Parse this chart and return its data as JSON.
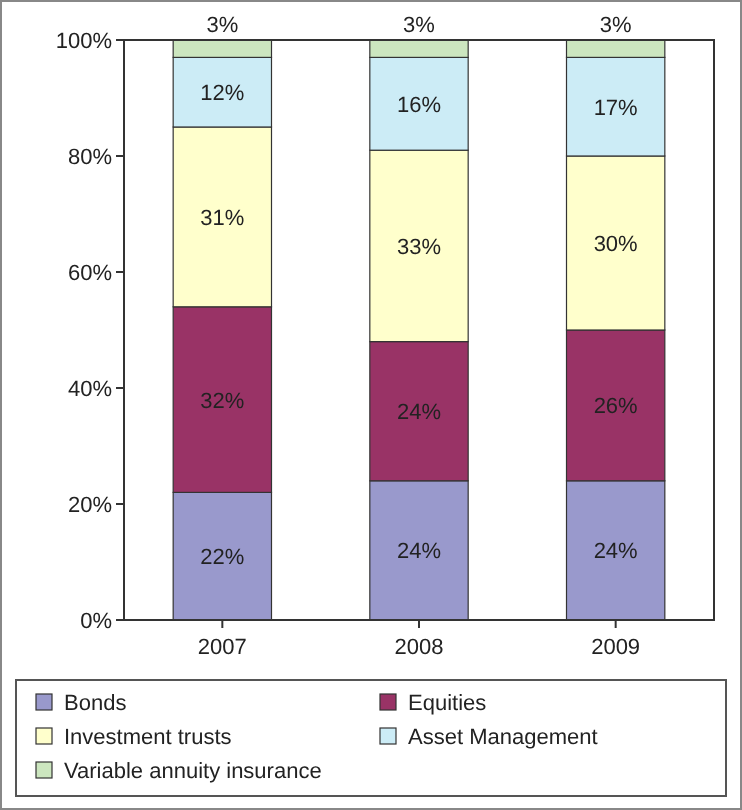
{
  "chart_data": {
    "type": "bar",
    "stacked": true,
    "categories": [
      "2007",
      "2008",
      "2009"
    ],
    "series": [
      {
        "name": "Bonds",
        "color": "#9999cc",
        "values": [
          22,
          24,
          24
        ],
        "value_labels": [
          "22%",
          "24%",
          "24%"
        ]
      },
      {
        "name": "Equities",
        "color": "#993366",
        "values": [
          32,
          24,
          26
        ],
        "value_labels": [
          "32%",
          "24%",
          "26%"
        ]
      },
      {
        "name": "Investment trusts",
        "color": "#ffffcc",
        "values": [
          31,
          33,
          30
        ],
        "value_labels": [
          "31%",
          "33%",
          "30%"
        ]
      },
      {
        "name": "Asset Management",
        "color": "#ccecf6",
        "values": [
          12,
          16,
          17
        ],
        "value_labels": [
          "12%",
          "16%",
          "17%"
        ]
      },
      {
        "name": "Variable annuity insurance",
        "color": "#cce6bf",
        "values": [
          3,
          3,
          3
        ],
        "value_labels": [
          "3%",
          "3%",
          "3%"
        ]
      }
    ],
    "ylim": [
      0,
      100
    ],
    "yticks": [
      {
        "value": 0,
        "label": "0%"
      },
      {
        "value": 20,
        "label": "20%"
      },
      {
        "value": 40,
        "label": "40%"
      },
      {
        "value": 60,
        "label": "60%"
      },
      {
        "value": 80,
        "label": "80%"
      },
      {
        "value": 100,
        "label": "100%"
      }
    ],
    "legend": "bottom"
  }
}
